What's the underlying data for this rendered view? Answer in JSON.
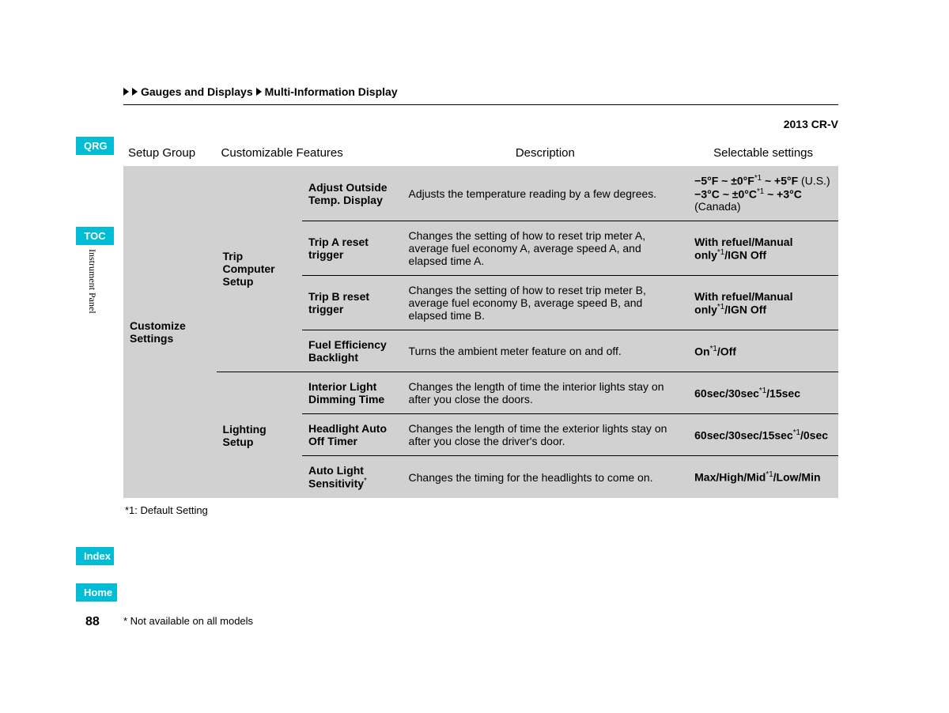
{
  "sidenav": {
    "qrg": "QRG",
    "toc": "TOC",
    "vertical_label": "Instrument Panel",
    "index": "Index",
    "home": "Home",
    "page_number": "88"
  },
  "breadcrumb": {
    "level1": "Gauges and Displays",
    "level2": "Multi-Information Display"
  },
  "model_line": "2013 CR-V",
  "table": {
    "headers": {
      "setup_group": "Setup Group",
      "features": "Customizable Features",
      "description": "Description",
      "settings": "Selectable settings"
    },
    "setup_group": "Customize Settings",
    "groups": [
      {
        "name": "Trip Computer Setup",
        "rows": [
          {
            "feature": "Adjust Outside Temp. Display",
            "description": "Adjusts the temperature reading by a few degrees.",
            "settings_html": "<span class='b'>−5°F ~ ±0°F</span><span class='sup'>*1</span> <span class='b'>~ +5°F</span> (U.S.)<br><span class='b'>−3°C ~ ±0°C</span><span class='sup'>*1</span> <span class='b'>~ +3°C</span> (Canada)"
          },
          {
            "feature": "Trip A reset trigger",
            "description": "Changes the setting of how to reset trip meter A, average fuel economy A, average speed A, and elapsed time A.",
            "settings_html": "<span class='b'>With refuel/Manual only</span><span class='sup'>*1</span><span class='b'>/IGN Off</span>"
          },
          {
            "feature": "Trip B reset trigger",
            "description": "Changes the setting of how to reset trip meter B, average fuel economy B, average speed B, and elapsed time B.",
            "settings_html": "<span class='b'>With refuel/Manual only</span><span class='sup'>*1</span><span class='b'>/IGN Off</span>"
          },
          {
            "feature": "Fuel Efficiency Backlight",
            "description": "Turns the ambient meter feature on and off.",
            "settings_html": "<span class='b'>On</span><span class='sup'>*1</span><span class='b'>/Off</span>"
          }
        ]
      },
      {
        "name": "Lighting Setup",
        "rows": [
          {
            "feature": "Interior Light Dimming Time",
            "description": "Changes the length of time the interior lights stay on after you close the doors.",
            "settings_html": "<span class='b'>60sec/30sec</span><span class='sup'>*1</span><span class='b'>/15sec</span>"
          },
          {
            "feature": "Headlight Auto Off Timer",
            "description": "Changes the length of time the exterior lights stay on after you close the driver's door.",
            "settings_html": "<span class='b'>60sec/30sec/15sec</span><span class='sup'>*1</span><span class='b'>/0sec</span>"
          },
          {
            "feature_html": "Auto Light Sensitivity<span class='sup'>*</span>",
            "description": "Changes the timing for the headlights to come on.",
            "settings_html": "<span class='b'>Max/High/Mid</span><span class='sup'>*1</span><span class='b'>/Low/Min</span>"
          }
        ]
      }
    ]
  },
  "footnote1": "*1: Default Setting",
  "asterisk_note": "* Not available on all models"
}
